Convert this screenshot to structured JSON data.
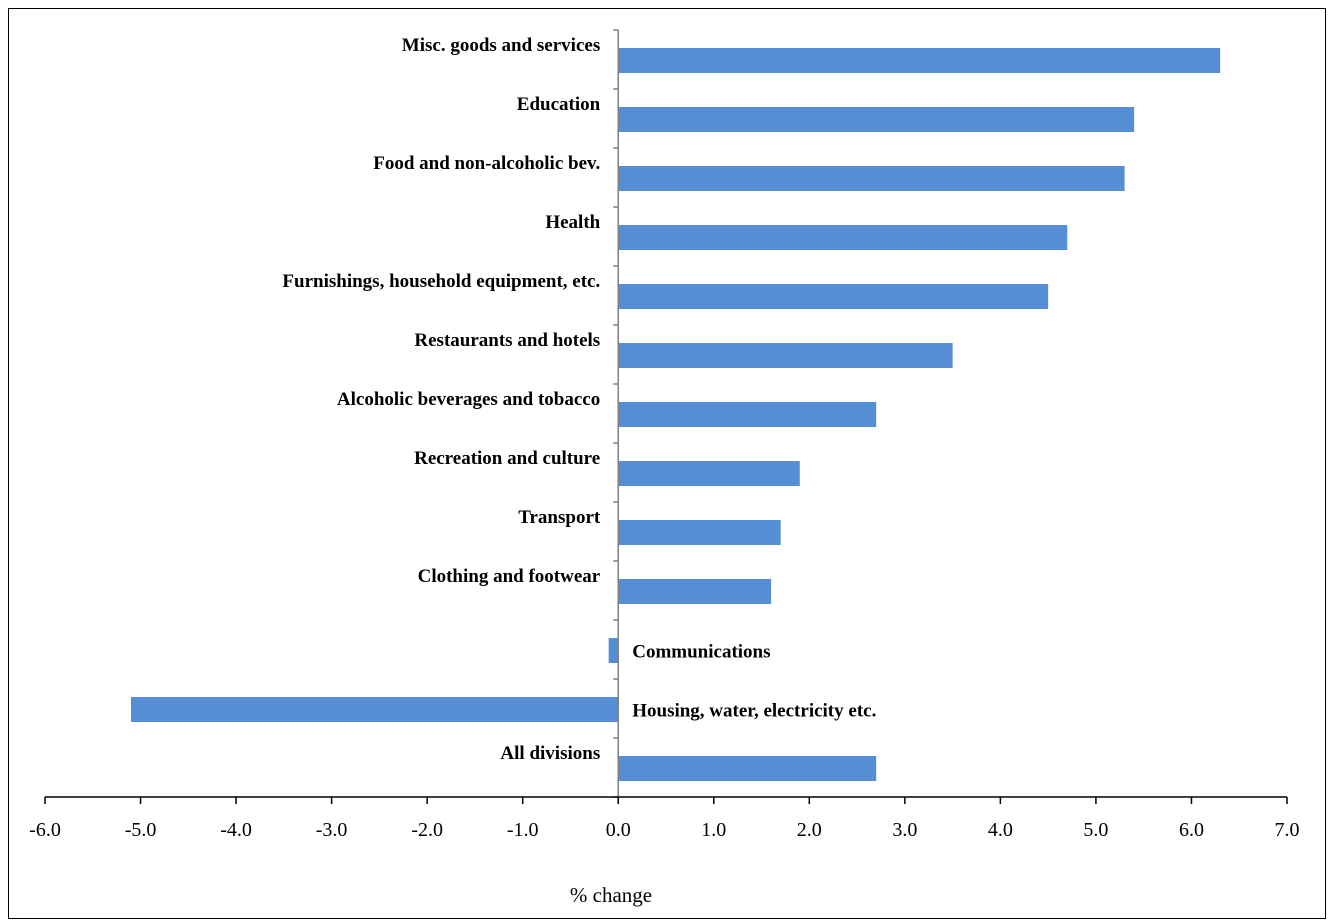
{
  "chart_data": {
    "type": "bar",
    "orientation": "horizontal",
    "categories": [
      "Misc. goods and services",
      "Education",
      "Food and non-alcoholic bev.",
      "Health",
      "Furnishings, household equipment, etc.",
      "Restaurants and hotels",
      "Alcoholic beverages and tobacco",
      "Recreation and culture",
      "Transport",
      "Clothing and footwear",
      "Communications",
      "Housing, water, electricity etc.",
      "All divisions"
    ],
    "values": [
      6.3,
      5.4,
      5.3,
      4.7,
      4.5,
      3.5,
      2.7,
      1.9,
      1.7,
      1.6,
      -0.1,
      -5.1,
      2.7
    ],
    "title": "",
    "xlabel": "% change",
    "ylabel": "",
    "xlim": [
      -6.0,
      7.0
    ],
    "xticks": [
      "-6.0",
      "-5.0",
      "-4.0",
      "-3.0",
      "-2.0",
      "-1.0",
      "0.0",
      "1.0",
      "2.0",
      "3.0",
      "4.0",
      "5.0",
      "6.0",
      "7.0"
    ],
    "bar_color": "#558ED5",
    "grid": false,
    "legend": "none"
  }
}
